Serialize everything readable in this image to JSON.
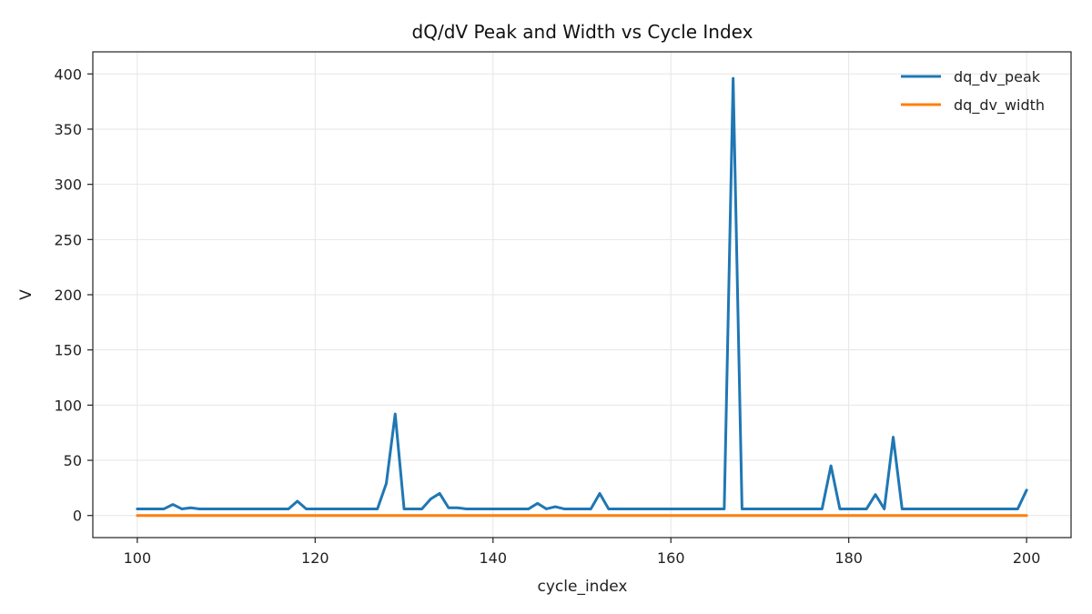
{
  "chart_data": {
    "type": "line",
    "title": "dQ/dV Peak and Width vs Cycle Index",
    "xlabel": "cycle_index",
    "ylabel": "V",
    "xlim": [
      95,
      205
    ],
    "ylim": [
      -20,
      420
    ],
    "x_ticks": [
      100,
      120,
      140,
      160,
      180,
      200
    ],
    "y_ticks": [
      0,
      50,
      100,
      150,
      200,
      250,
      300,
      350,
      400
    ],
    "grid": true,
    "legend_position": "top-right",
    "x": [
      100,
      101,
      102,
      103,
      104,
      105,
      106,
      107,
      108,
      109,
      110,
      111,
      112,
      113,
      114,
      115,
      116,
      117,
      118,
      119,
      120,
      121,
      122,
      123,
      124,
      125,
      126,
      127,
      128,
      129,
      130,
      131,
      132,
      133,
      134,
      135,
      136,
      137,
      138,
      139,
      140,
      141,
      142,
      143,
      144,
      145,
      146,
      147,
      148,
      149,
      150,
      151,
      152,
      153,
      154,
      155,
      156,
      157,
      158,
      159,
      160,
      161,
      162,
      163,
      164,
      165,
      166,
      167,
      168,
      169,
      170,
      171,
      172,
      173,
      174,
      175,
      176,
      177,
      178,
      179,
      180,
      181,
      182,
      183,
      184,
      185,
      186,
      187,
      188,
      189,
      190,
      191,
      192,
      193,
      194,
      195,
      196,
      197,
      198,
      199,
      200
    ],
    "series": [
      {
        "name": "dq_dv_peak",
        "color": "#1f77b4",
        "values": [
          6,
          6,
          6,
          6,
          10,
          6,
          7,
          6,
          6,
          6,
          6,
          6,
          6,
          6,
          6,
          6,
          6,
          6,
          13,
          6,
          6,
          6,
          6,
          6,
          6,
          6,
          6,
          6,
          29,
          92,
          6,
          6,
          6,
          15,
          20,
          7,
          7,
          6,
          6,
          6,
          6,
          6,
          6,
          6,
          6,
          11,
          6,
          8,
          6,
          6,
          6,
          6,
          20,
          6,
          6,
          6,
          6,
          6,
          6,
          6,
          6,
          6,
          6,
          6,
          6,
          6,
          6,
          396,
          6,
          6,
          6,
          6,
          6,
          6,
          6,
          6,
          6,
          6,
          45,
          6,
          6,
          6,
          6,
          19,
          6,
          71,
          6,
          6,
          6,
          6,
          6,
          6,
          6,
          6,
          6,
          6,
          6,
          6,
          6,
          6,
          23
        ]
      },
      {
        "name": "dq_dv_width",
        "color": "#ff7f0e",
        "values": [
          0,
          0,
          0,
          0,
          0,
          0,
          0,
          0,
          0,
          0,
          0,
          0,
          0,
          0,
          0,
          0,
          0,
          0,
          0,
          0,
          0,
          0,
          0,
          0,
          0,
          0,
          0,
          0,
          0,
          0,
          0,
          0,
          0,
          0,
          0,
          0,
          0,
          0,
          0,
          0,
          0,
          0,
          0,
          0,
          0,
          0,
          0,
          0,
          0,
          0,
          0,
          0,
          0,
          0,
          0,
          0,
          0,
          0,
          0,
          0,
          0,
          0,
          0,
          0,
          0,
          0,
          0,
          0,
          0,
          0,
          0,
          0,
          0,
          0,
          0,
          0,
          0,
          0,
          0,
          0,
          0,
          0,
          0,
          0,
          0,
          0,
          0,
          0,
          0,
          0,
          0,
          0,
          0,
          0,
          0,
          0,
          0,
          0,
          0,
          0,
          0
        ]
      }
    ]
  }
}
